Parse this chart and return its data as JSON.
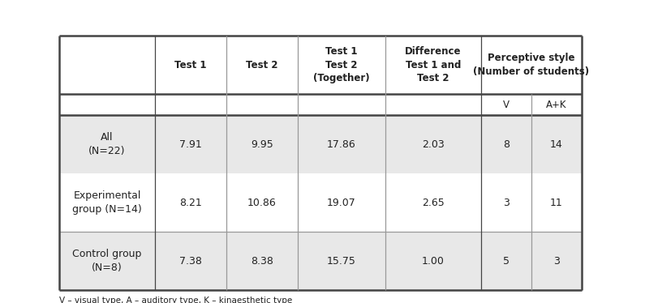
{
  "figsize": [
    7.95,
    3.74
  ],
  "dpi": 100,
  "background_color": "#ffffff",
  "border_color": "#444444",
  "light_border_color": "#999999",
  "footnote": "V – visual type, A – auditory type, K – kinaesthetic type",
  "rows": [
    {
      "label": "All\n(N=22)",
      "values": [
        "7.91",
        "9.95",
        "17.86",
        "2.03",
        "8",
        "14"
      ],
      "bg": "#e8e8e8"
    },
    {
      "label": "Experimental\ngroup (N=14)",
      "values": [
        "8.21",
        "10.86",
        "19.07",
        "2.65",
        "3",
        "11"
      ],
      "bg": "#ffffff"
    },
    {
      "label": "Control group\n(N=8)",
      "values": [
        "7.38",
        "8.38",
        "15.75",
        "1.00",
        "5",
        "3"
      ],
      "bg": "#e8e8e8"
    }
  ],
  "font_size_header": 8.5,
  "font_size_data": 9.0,
  "font_size_footnote": 7.5
}
